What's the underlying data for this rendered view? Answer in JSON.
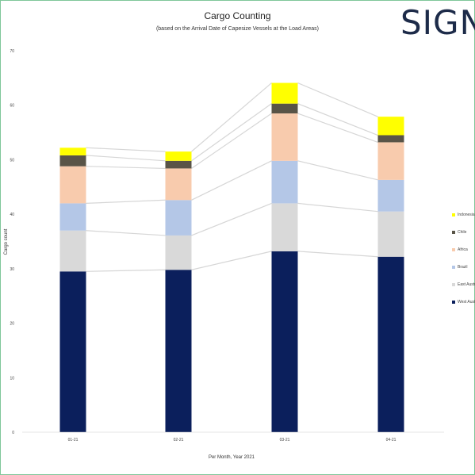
{
  "header": {
    "title": "Cargo Counting",
    "subtitle": "(based on the Arrival Date of Capesize Vessels at the Load Areas)",
    "logo_text": "SIGNAL"
  },
  "chart_data": {
    "type": "bar",
    "stacked": true,
    "title": "Cargo Counting",
    "subtitle": "(based on the Arrival Date of Capesize Vessels at the Load Areas)",
    "xlabel": "Per Month, Year 2021",
    "ylabel": "Cargo count",
    "ylim": [
      0,
      70
    ],
    "yticks": [
      0,
      10,
      20,
      30,
      40,
      50,
      60,
      70
    ],
    "categories": [
      "01-21",
      "02-21",
      "03-21",
      "04-21"
    ],
    "connector_lines": true,
    "legend_position": "right",
    "series": [
      {
        "name": "West Australia",
        "color": "#0b1f5c",
        "values": [
          29.5,
          29.8,
          33.2,
          32.2
        ]
      },
      {
        "name": "East Australia",
        "color": "#d9d9d9",
        "values": [
          7.5,
          6.3,
          8.8,
          8.3
        ]
      },
      {
        "name": "Brazil",
        "color": "#b4c7e7",
        "values": [
          5.0,
          6.5,
          7.8,
          5.8
        ]
      },
      {
        "name": "Africa",
        "color": "#f8cbad",
        "values": [
          6.8,
          5.8,
          8.7,
          6.9
        ]
      },
      {
        "name": "Chile",
        "color": "#595447",
        "values": [
          2.0,
          1.4,
          1.8,
          1.3
        ]
      },
      {
        "name": "Indonesia",
        "color": "#ffff00",
        "values": [
          1.4,
          1.7,
          3.8,
          3.4
        ]
      }
    ]
  }
}
